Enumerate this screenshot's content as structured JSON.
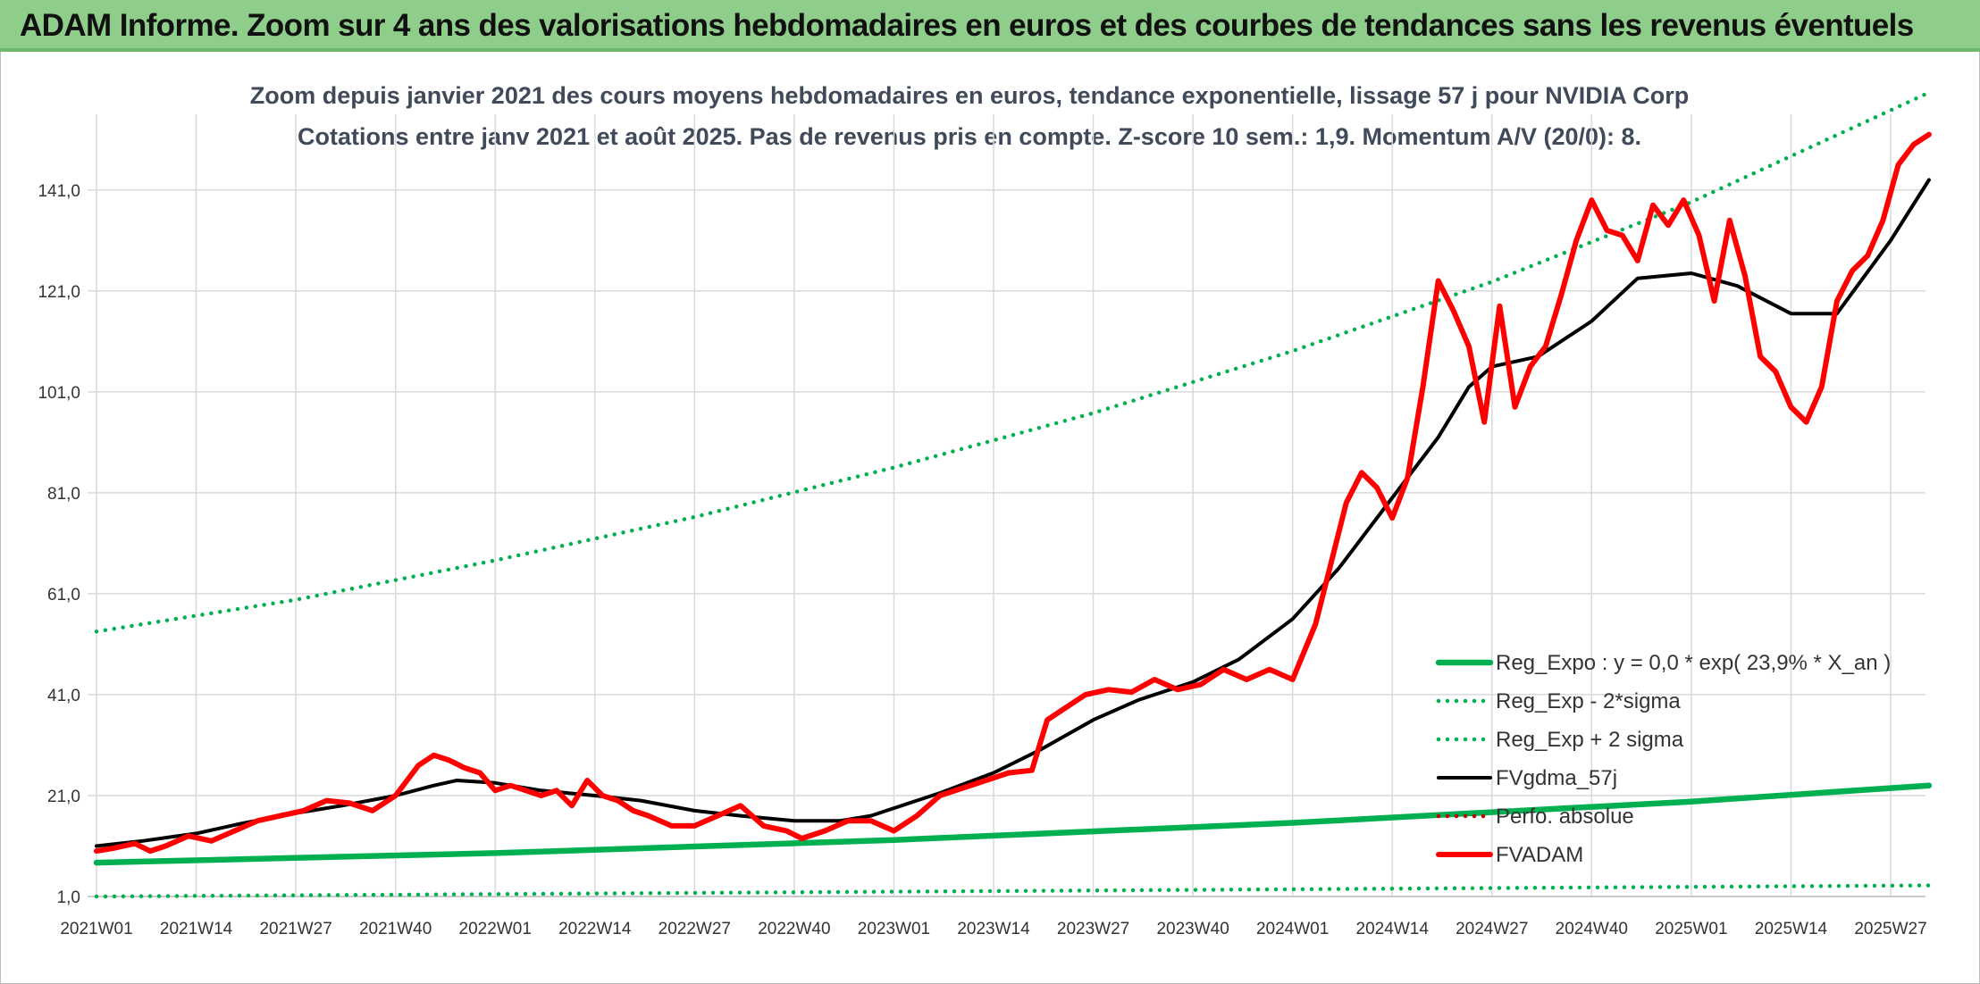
{
  "header": {
    "title": "ADAM Informe. Zoom sur 4 ans des valorisations hebdomadaires en euros et des courbes de tendances sans les revenus éventuels"
  },
  "colors": {
    "header_bg": "#8fce8a",
    "regression": "#00b050",
    "price": "#ff0000",
    "moving_average": "#000000",
    "perfo_absolue": "#c00000"
  },
  "chart_data": {
    "type": "line",
    "title": "Zoom depuis janvier 2021 des cours moyens hebdomadaires en euros, tendance exponentielle, lissage 57 j pour NVIDIA Corp",
    "subtitle": "Cotations entre janv 2021 et août 2025. Pas de revenus pris en compte. Z-score 10 sem.: 1,9. Momentum A/V (20/0): 8.",
    "xlabel": "",
    "ylabel": "",
    "x_tick_labels": [
      "2021W01",
      "2021W14",
      "2021W27",
      "2021W40",
      "2022W01",
      "2022W14",
      "2022W27",
      "2022W40",
      "2023W01",
      "2023W14",
      "2023W27",
      "2023W40",
      "2024W01",
      "2024W14",
      "2024W27",
      "2024W40",
      "2025W01",
      "2025W14",
      "2025W27"
    ],
    "y_tick_labels": [
      "1,0",
      "21,0",
      "41,0",
      "61,0",
      "81,0",
      "101,0",
      "121,0",
      "141,0"
    ],
    "ylim": [
      1,
      156
    ],
    "grid": true,
    "legend_position": "bottom-right",
    "series": [
      {
        "name": "Reg_Expo : y = 0,0 * exp( 23,9% *  X_an )",
        "style": "solid-thick",
        "color": "#00b050",
        "x": [
          "2021W01",
          "2022W01",
          "2023W01",
          "2024W01",
          "2025W01",
          "2025W32"
        ],
        "values": [
          7.7,
          9.6,
          12.2,
          15.6,
          19.8,
          23.0
        ]
      },
      {
        "name": "Reg_Exp - 2*sigma",
        "style": "dotted",
        "color": "#00b050",
        "x": [
          "2021W01",
          "2025W32"
        ],
        "values": [
          1.0,
          3.2
        ]
      },
      {
        "name": "Reg_Exp + 2 sigma",
        "style": "dotted",
        "color": "#00b050",
        "x": [
          "2021W01",
          "2021W27",
          "2022W01",
          "2022W27",
          "2023W01",
          "2023W27",
          "2024W01",
          "2024W27",
          "2025W01",
          "2025W32"
        ],
        "values": [
          53.5,
          59.8,
          67.6,
          76.2,
          86.0,
          96.8,
          109.1,
          122.8,
          138.6,
          160.3
        ]
      },
      {
        "name": "FVgdma_57j",
        "style": "solid",
        "color": "#000000",
        "x": [
          "2021W01",
          "2021W07",
          "2021W14",
          "2021W20",
          "2021W27",
          "2021W33",
          "2021W40",
          "2021W45",
          "2021W48",
          "2022W01",
          "2022W07",
          "2022W14",
          "2022W20",
          "2022W27",
          "2022W33",
          "2022W40",
          "2022W46",
          "2022W50",
          "2023W01",
          "2023W07",
          "2023W14",
          "2023W20",
          "2023W27",
          "2023W33",
          "2023W40",
          "2023W46",
          "2024W01",
          "2024W07",
          "2024W14",
          "2024W20",
          "2024W24",
          "2024W27",
          "2024W33",
          "2024W40",
          "2024W46",
          "2025W01",
          "2025W07",
          "2025W14",
          "2025W20",
          "2025W27",
          "2025W32"
        ],
        "values": [
          11,
          12,
          13.5,
          15.5,
          17.5,
          19,
          21,
          23,
          24,
          23.5,
          22,
          21,
          20,
          18,
          17,
          16,
          16,
          17,
          18.5,
          21.5,
          25.5,
          30,
          36,
          40,
          43.5,
          48,
          56,
          66,
          80,
          92,
          102,
          106,
          108,
          115,
          123.5,
          124.5,
          122,
          116.5,
          116.5,
          131,
          143
        ]
      },
      {
        "name": "Perfo. absolue",
        "style": "dotted",
        "color": "#c00000",
        "x": [],
        "values": []
      },
      {
        "name": "FVADAM",
        "style": "solid-thick",
        "color": "#ff0000",
        "x": [
          "2021W01",
          "2021W03",
          "2021W06",
          "2021W08",
          "2021W10",
          "2021W13",
          "2021W16",
          "2021W19",
          "2021W22",
          "2021W25",
          "2021W28",
          "2021W31",
          "2021W34",
          "2021W37",
          "2021W40",
          "2021W43",
          "2021W45",
          "2021W47",
          "2021W49",
          "2021W51",
          "2022W01",
          "2022W03",
          "2022W05",
          "2022W07",
          "2022W09",
          "2022W11",
          "2022W13",
          "2022W15",
          "2022W17",
          "2022W19",
          "2022W21",
          "2022W24",
          "2022W27",
          "2022W30",
          "2022W33",
          "2022W36",
          "2022W39",
          "2022W41",
          "2022W44",
          "2022W47",
          "2022W50",
          "2023W01",
          "2023W04",
          "2023W07",
          "2023W10",
          "2023W13",
          "2023W16",
          "2023W19",
          "2023W21",
          "2023W23",
          "2023W26",
          "2023W29",
          "2023W32",
          "2023W35",
          "2023W38",
          "2023W41",
          "2023W44",
          "2023W47",
          "2023W50",
          "2024W01",
          "2024W04",
          "2024W06",
          "2024W08",
          "2024W10",
          "2024W12",
          "2024W14",
          "2024W16",
          "2024W18",
          "2024W20",
          "2024W22",
          "2024W24",
          "2024W26",
          "2024W28",
          "2024W30",
          "2024W32",
          "2024W34",
          "2024W36",
          "2024W38",
          "2024W40",
          "2024W42",
          "2024W44",
          "2024W46",
          "2024W48",
          "2024W50",
          "2024W52",
          "2025W02",
          "2025W04",
          "2025W06",
          "2025W08",
          "2025W10",
          "2025W12",
          "2025W14",
          "2025W16",
          "2025W18",
          "2025W20",
          "2025W22",
          "2025W24",
          "2025W26",
          "2025W28",
          "2025W30",
          "2025W32"
        ],
        "values": [
          10,
          10.5,
          11.5,
          10,
          11,
          13,
          12,
          14,
          16,
          17,
          18,
          20,
          19.5,
          18,
          21,
          27,
          29,
          28,
          26.5,
          25.5,
          22,
          23,
          22,
          21,
          22,
          19,
          24,
          21,
          20,
          18,
          17,
          15,
          15,
          17,
          19,
          15,
          14,
          12.5,
          14,
          16,
          16,
          14,
          17,
          21,
          22.5,
          24,
          25.5,
          26,
          36,
          38,
          41,
          42,
          41.5,
          44,
          42,
          43,
          46,
          44,
          46,
          44,
          55,
          67,
          79,
          85,
          82,
          76,
          84,
          102,
          123,
          117,
          110,
          95,
          118,
          98,
          106,
          110,
          120,
          131,
          139,
          133,
          132,
          127,
          138,
          134,
          139,
          132,
          119,
          135,
          124,
          108,
          105,
          98,
          95,
          102,
          119,
          125,
          128,
          135,
          146,
          150,
          152
        ]
      }
    ]
  }
}
